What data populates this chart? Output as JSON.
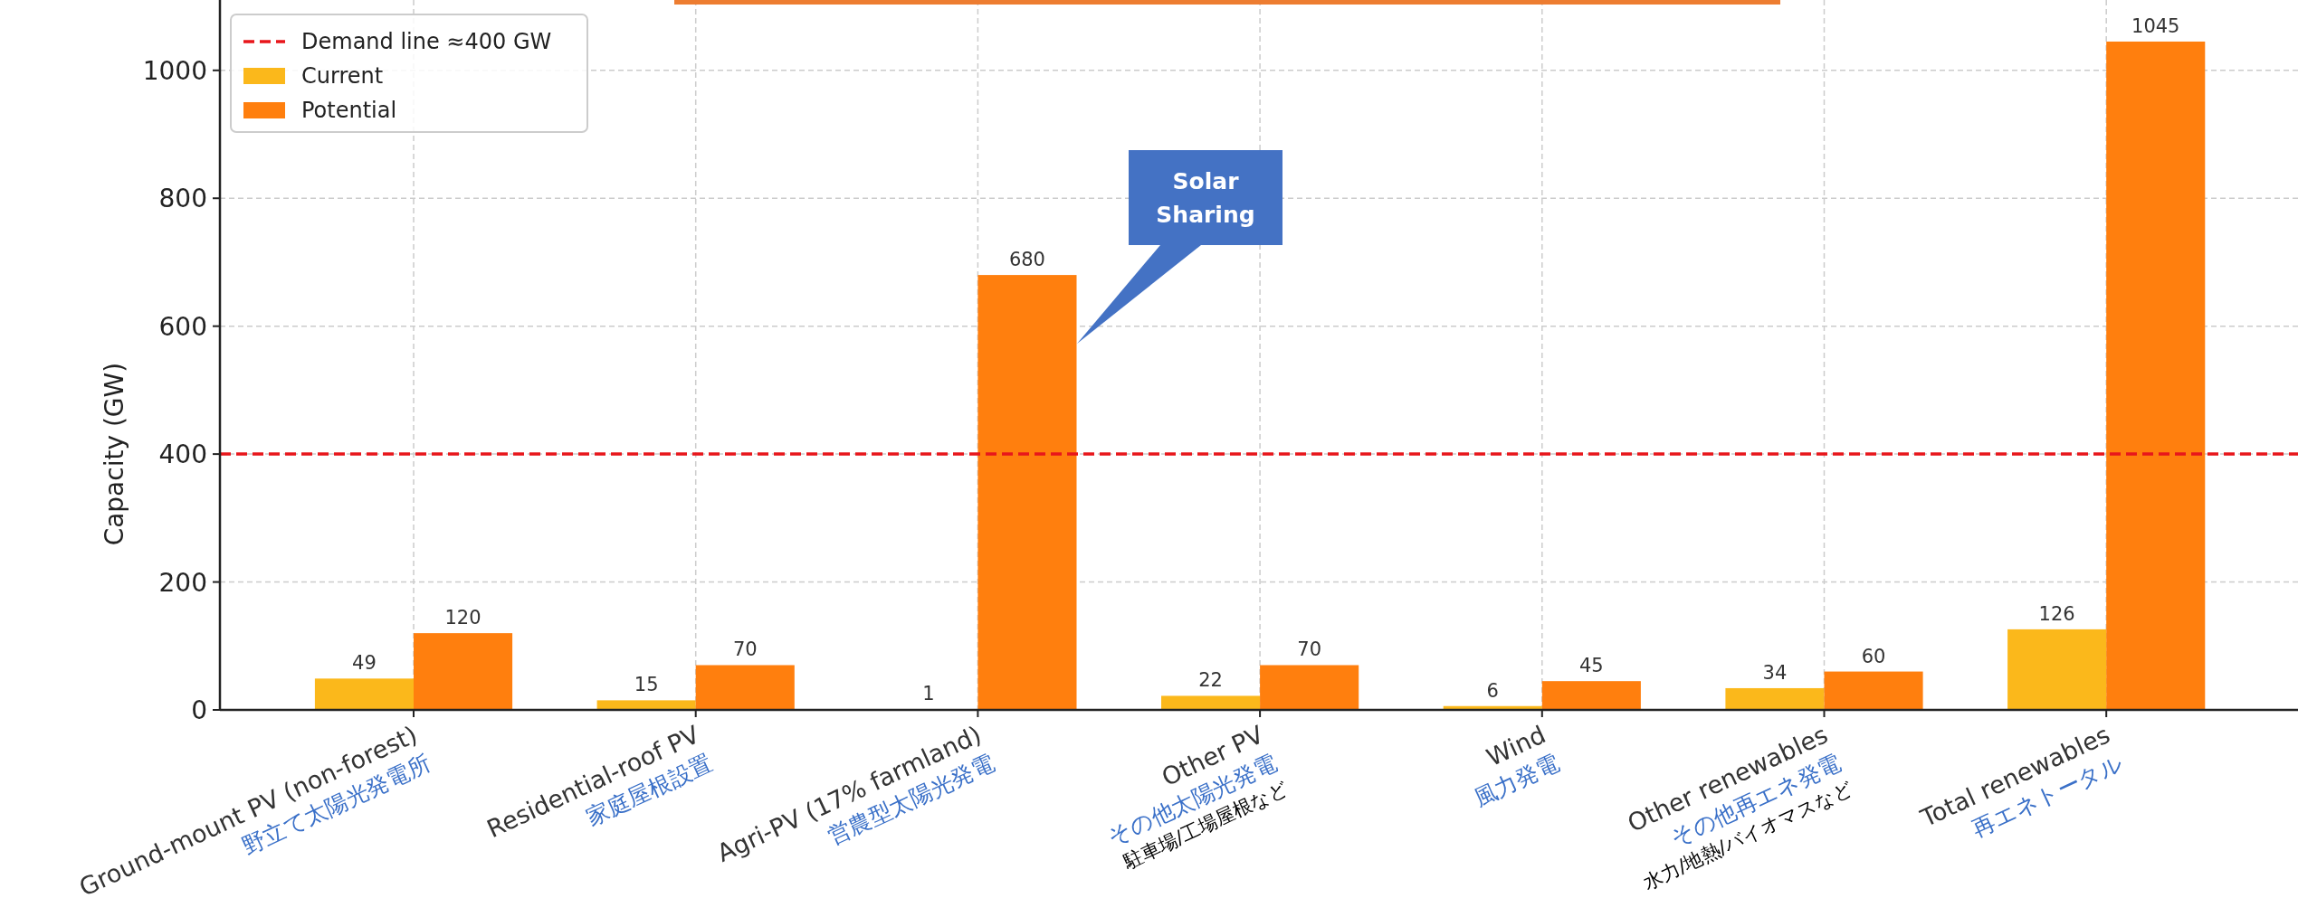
{
  "chart_data": {
    "type": "bar",
    "ylabel": "Capacity (GW)",
    "categories": [
      "Ground-mount PV (non-forest)\n野立て太陽光発電所",
      "Residential-roof PV\n家庭屋根設置",
      "Agri-PV (17% farmland)\n営農型太陽光発電",
      "Other PV\nその他太陽光発電\n駐車場/工場屋根など",
      "Wind\n風力発電",
      "Other renewables\nその他再エネ発電\n水力/地熱/バイオマスなど",
      "Total renewables\n再エネトータル"
    ],
    "series": [
      {
        "name": "Current",
        "color": "#fbb81b",
        "values": [
          49,
          15,
          1,
          22,
          6,
          34,
          126
        ]
      },
      {
        "name": "Potential",
        "color": "#ff7f0e",
        "values": [
          120,
          70,
          680,
          70,
          45,
          60,
          1045
        ]
      }
    ],
    "ylim": [
      0,
      1110
    ],
    "yticks": [
      0,
      200,
      400,
      600,
      800,
      1000
    ],
    "ref_lines": [
      {
        "axis": "y",
        "value": 400,
        "label": "Demand line ≈400 GW",
        "color": "#e8161b",
        "line_style": "dashed"
      }
    ],
    "annotations": [
      "Solar Sharing"
    ],
    "data_labels": true,
    "grid": true,
    "legend": "top left"
  }
}
